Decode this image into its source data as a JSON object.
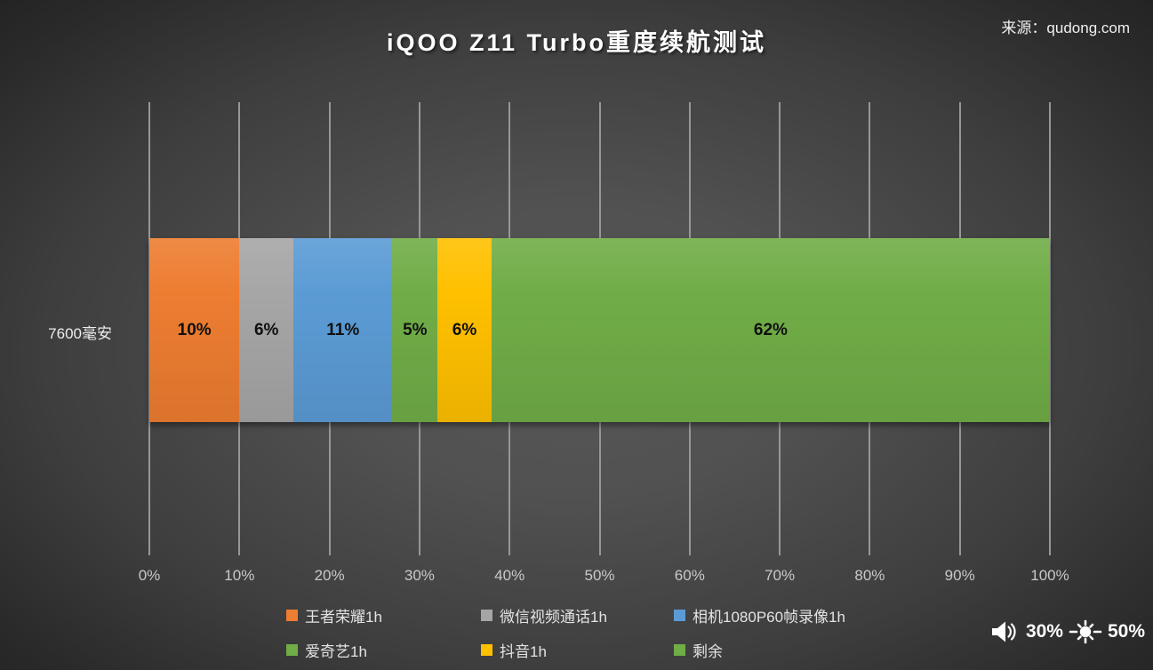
{
  "header": {
    "source_label": "来源：qudong.com"
  },
  "chart_data": {
    "type": "bar",
    "orientation": "horizontal-stacked",
    "title": "iQOO Z11 Turbo重度续航测试",
    "category": "7600毫安",
    "series": [
      {
        "name": "王者荣耀1h",
        "value": 10,
        "label": "10%",
        "color": "#ED7D31"
      },
      {
        "name": "微信视频通话1h",
        "value": 6,
        "label": "6%",
        "color": "#A6A6A6"
      },
      {
        "name": "相机1080P60帧录像1h",
        "value": 11,
        "label": "11%",
        "color": "#5B9BD5"
      },
      {
        "name": "爱奇艺1h",
        "value": 5,
        "label": "5%",
        "color": "#70AD47"
      },
      {
        "name": "抖音1h",
        "value": 6,
        "label": "6%",
        "color": "#FFC000"
      },
      {
        "name": "剩余",
        "value": 62,
        "label": "62%",
        "color": "#70AD47"
      }
    ],
    "x_ticks": [
      "0%",
      "10%",
      "20%",
      "30%",
      "40%",
      "50%",
      "60%",
      "70%",
      "80%",
      "90%",
      "100%"
    ],
    "xlim": [
      0,
      100
    ],
    "grid": true,
    "legend_position": "bottom"
  },
  "status": {
    "volume": "30%",
    "brightness": "50%"
  },
  "colors": {
    "background_center": "#575757",
    "background_edge": "#262626",
    "gridline": "#979797",
    "tick_text": "#c9c9c9",
    "legend_text": "#e3e3e3"
  }
}
